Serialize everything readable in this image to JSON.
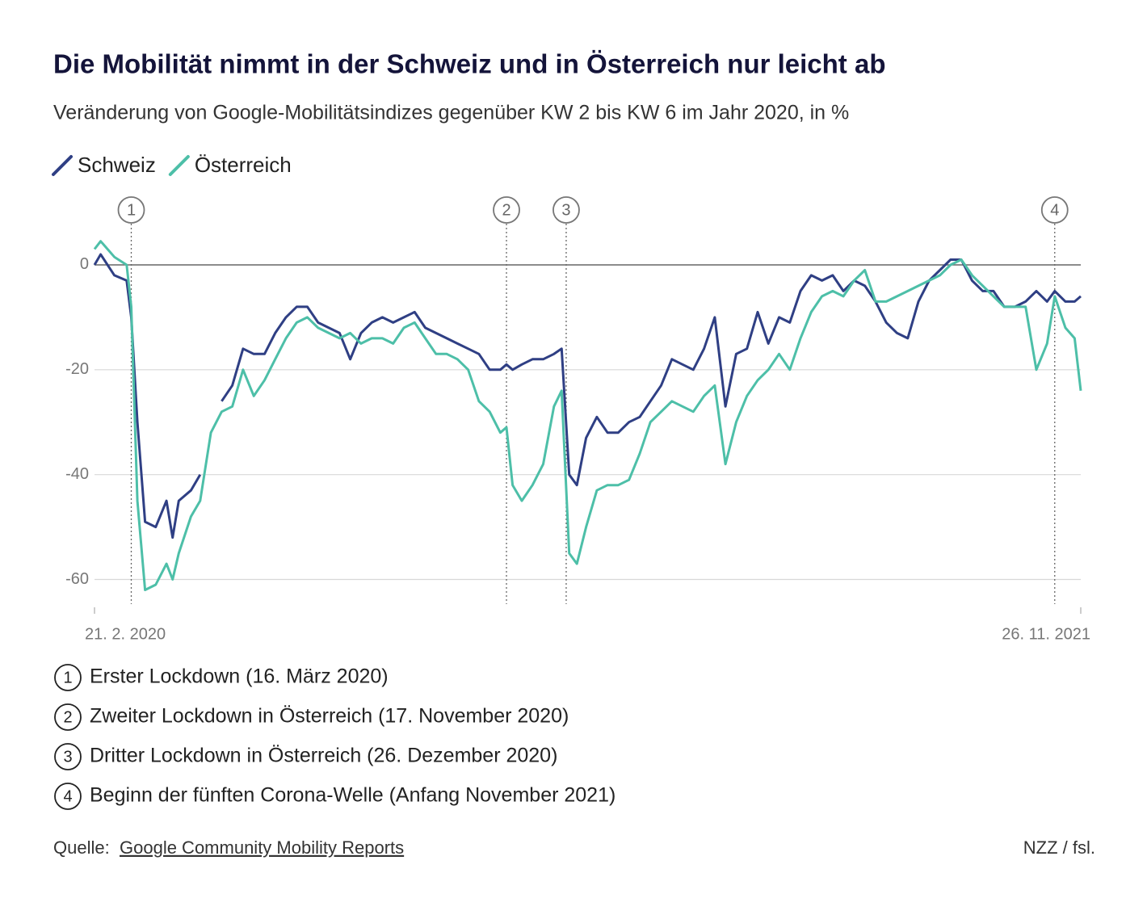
{
  "chart_data": {
    "type": "line",
    "title": "Die Mobilität nimmt in der Schweiz und in Österreich nur leicht ab",
    "subtitle": "Veränderung von Google-Mobilitätsindizes gegenüber KW 2 bis KW 6 im Jahr 2020, in %",
    "x": [
      "2020-02-21",
      "2020-02-25",
      "2020-03-05",
      "2020-03-13",
      "2020-03-16",
      "2020-03-20",
      "2020-03-25",
      "2020-04-01",
      "2020-04-08",
      "2020-04-12",
      "2020-04-16",
      "2020-04-24",
      "2020-04-30",
      "2020-05-07",
      "2020-05-14",
      "2020-05-21",
      "2020-05-28",
      "2020-06-04",
      "2020-06-11",
      "2020-06-18",
      "2020-06-25",
      "2020-07-02",
      "2020-07-09",
      "2020-07-16",
      "2020-07-23",
      "2020-07-30",
      "2020-08-06",
      "2020-08-13",
      "2020-08-20",
      "2020-08-27",
      "2020-09-03",
      "2020-09-10",
      "2020-09-17",
      "2020-09-24",
      "2020-10-01",
      "2020-10-08",
      "2020-10-15",
      "2020-10-22",
      "2020-10-29",
      "2020-11-05",
      "2020-11-12",
      "2020-11-16",
      "2020-11-20",
      "2020-11-26",
      "2020-12-03",
      "2020-12-10",
      "2020-12-17",
      "2020-12-22",
      "2020-12-27",
      "2021-01-01",
      "2021-01-07",
      "2021-01-14",
      "2021-01-21",
      "2021-01-28",
      "2021-02-04",
      "2021-02-11",
      "2021-02-18",
      "2021-02-25",
      "2021-03-04",
      "2021-03-11",
      "2021-03-18",
      "2021-03-25",
      "2021-04-01",
      "2021-04-08",
      "2021-04-15",
      "2021-04-22",
      "2021-04-29",
      "2021-05-06",
      "2021-05-13",
      "2021-05-20",
      "2021-05-27",
      "2021-06-03",
      "2021-06-10",
      "2021-06-17",
      "2021-06-24",
      "2021-07-01",
      "2021-07-08",
      "2021-07-15",
      "2021-07-22",
      "2021-07-29",
      "2021-08-05",
      "2021-08-12",
      "2021-08-19",
      "2021-08-26",
      "2021-09-02",
      "2021-09-09",
      "2021-09-16",
      "2021-09-23",
      "2021-09-30",
      "2021-10-07",
      "2021-10-14",
      "2021-10-21",
      "2021-10-28",
      "2021-11-04",
      "2021-11-09",
      "2021-11-16",
      "2021-11-22",
      "2021-11-26"
    ],
    "series": [
      {
        "name": "Schweiz",
        "color": "#2f3f84",
        "values": [
          0,
          2,
          -2,
          -3,
          -10,
          -30,
          -49,
          -50,
          -45,
          -52,
          -45,
          -43,
          -40,
          null,
          -26,
          -23,
          -16,
          -17,
          -17,
          -13,
          -10,
          -8,
          -8,
          -11,
          -12,
          -13,
          -18,
          -13,
          -11,
          -10,
          -11,
          -10,
          -9,
          -12,
          -13,
          -14,
          -15,
          -16,
          -17,
          -20,
          -20,
          -19,
          -20,
          -19,
          -18,
          -18,
          -17,
          -16,
          -40,
          -42,
          -33,
          -29,
          -32,
          -32,
          -30,
          -29,
          -26,
          -23,
          -18,
          -19,
          -20,
          -16,
          -10,
          -27,
          -17,
          -16,
          -9,
          -15,
          -10,
          -11,
          -5,
          -2,
          -3,
          -2,
          -5,
          -3,
          -4,
          -7,
          -11,
          -13,
          -14,
          -7,
          -3,
          -1,
          1,
          1,
          -3,
          -5,
          -5,
          -8,
          -8,
          -7,
          -5,
          -7,
          -5,
          -7,
          -7,
          -6
        ]
      },
      {
        "name": "Österreich",
        "color": "#4dbfa8",
        "values": [
          3,
          4.5,
          1.5,
          0,
          -8,
          -45,
          -62,
          -61,
          -57,
          -60,
          -55,
          -48,
          -45,
          -32,
          -28,
          -27,
          -20,
          -25,
          -22,
          -18,
          -14,
          -11,
          -10,
          -12,
          -13,
          -14,
          -13,
          -15,
          -14,
          -14,
          -15,
          -12,
          -11,
          -14,
          -17,
          -17,
          -18,
          -20,
          -26,
          -28,
          -32,
          -31,
          -42,
          -45,
          -42,
          -38,
          -27,
          -24,
          -55,
          -57,
          -50,
          -43,
          -42,
          -42,
          -41,
          -36,
          -30,
          -28,
          -26,
          -27,
          -28,
          -25,
          -23,
          -38,
          -30,
          -25,
          -22,
          -20,
          -17,
          -20,
          -14,
          -9,
          -6,
          -5,
          -6,
          -3,
          -1,
          -7,
          -7,
          -6,
          -5,
          -4,
          -3,
          -2,
          0,
          1,
          -2,
          -4,
          -6,
          -8,
          -8,
          -8,
          -20,
          -15,
          -6,
          -12,
          -14,
          -24
        ]
      }
    ],
    "xlim": [
      "2020-02-21",
      "2021-11-26"
    ],
    "xticks": [
      {
        "value": "2020-02-21",
        "label": "21. 2. 2020"
      },
      {
        "value": "2021-11-26",
        "label": "26. 11. 2021"
      }
    ],
    "ylim": [
      -65,
      6
    ],
    "yticks": [
      0,
      -20,
      -40,
      -60
    ],
    "grid": true,
    "annotations": [
      {
        "number": "1",
        "x": "2020-03-16",
        "text": "Erster Lockdown (16. März 2020)"
      },
      {
        "number": "2",
        "x": "2020-11-16",
        "text": "Zweiter Lockdown in Österreich (17. November 2020)"
      },
      {
        "number": "3",
        "x": "2020-12-25",
        "text": "Dritter Lockdown in Österreich (26. Dezember 2020)"
      },
      {
        "number": "4",
        "x": "2021-11-09",
        "text": "Beginn der fünften Corona-Welle (Anfang November 2021)"
      }
    ],
    "source_label": "Quelle:",
    "source_link": "Google Community Mobility Reports",
    "credit": "NZZ / fsl."
  }
}
